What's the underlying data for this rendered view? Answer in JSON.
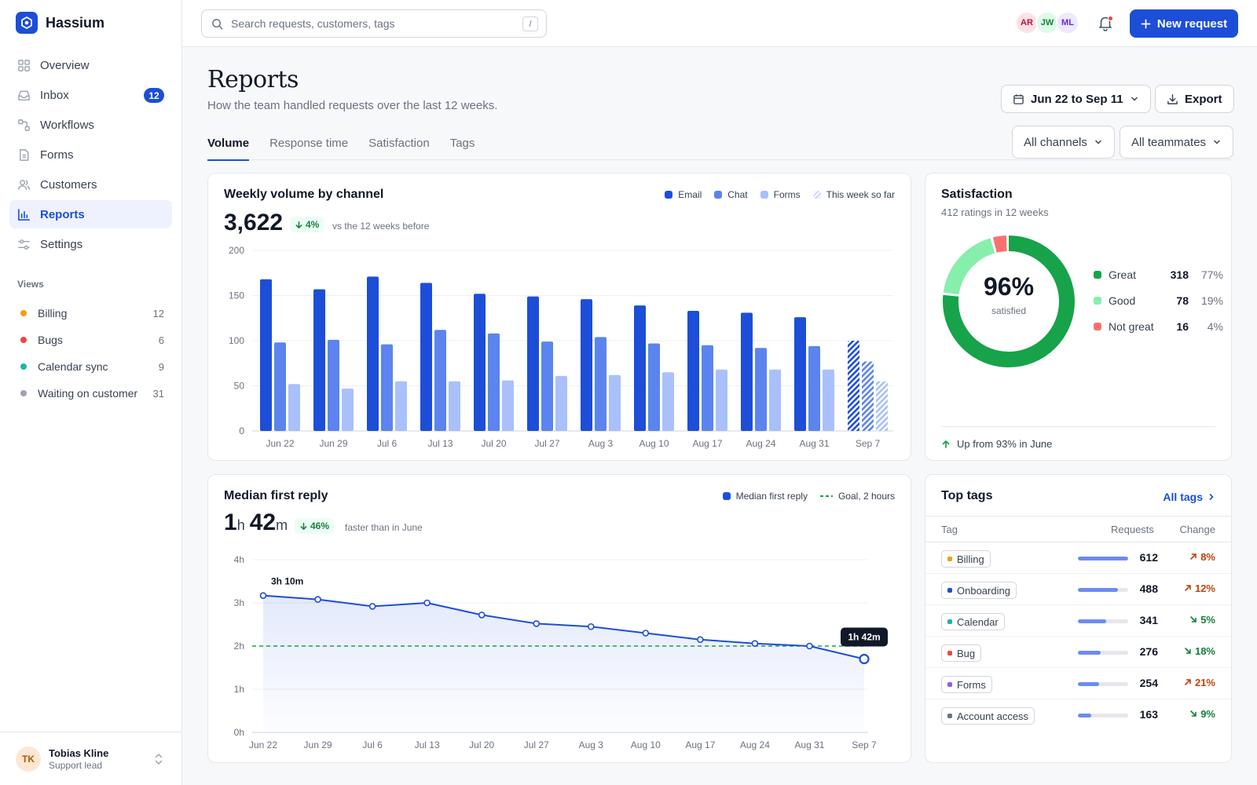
{
  "app": {
    "name": "Hassium"
  },
  "sidebar": {
    "nav": [
      {
        "label": "Overview",
        "icon": "grid-icon"
      },
      {
        "label": "Inbox",
        "icon": "inbox-icon",
        "badge": "12"
      },
      {
        "label": "Workflows",
        "icon": "workflow-icon"
      },
      {
        "label": "Forms",
        "icon": "document-icon"
      },
      {
        "label": "Customers",
        "icon": "users-icon"
      },
      {
        "label": "Reports",
        "icon": "bar-chart-icon",
        "active": true
      },
      {
        "label": "Settings",
        "icon": "sliders-icon"
      }
    ],
    "views_title": "Views",
    "views": [
      {
        "label": "Billing",
        "count": "12",
        "color": "#f59e0b"
      },
      {
        "label": "Bugs",
        "count": "6",
        "color": "#ef4444"
      },
      {
        "label": "Calendar sync",
        "count": "9",
        "color": "#14b8a6"
      },
      {
        "label": "Waiting on customer",
        "count": "31",
        "color": "#9ca3af"
      }
    ],
    "user": {
      "initials": "TK",
      "name": "Tobias Kline",
      "role": "Support lead"
    }
  },
  "topbar": {
    "search_placeholder": "Search requests, customers, tags",
    "search_shortcut": "/",
    "avatars": [
      {
        "initials": "AR",
        "bg": "#fde2e4",
        "fg": "#be123c"
      },
      {
        "initials": "JW",
        "bg": "#dcfce7",
        "fg": "#15803d"
      },
      {
        "initials": "ML",
        "bg": "#ede9fe",
        "fg": "#6d28d9"
      }
    ],
    "new_button": "New request"
  },
  "header": {
    "title": "Reports",
    "subtitle": "How the team handled requests over the last 12 weeks.",
    "date_range": "Jun 22 to Sep 11",
    "export": "Export",
    "channel_filter": "All channels",
    "teammate_filter": "All teammates",
    "tabs": [
      "Volume",
      "Response time",
      "Satisfaction",
      "Tags"
    ]
  },
  "volume_card": {
    "title": "Weekly volume by channel",
    "total": "3,622",
    "delta": "4%",
    "delta_note": "vs the 12 weeks before",
    "legend": [
      "Email",
      "Chat",
      "Forms",
      "This week so far"
    ]
  },
  "reply_card": {
    "title": "Median first reply",
    "value_h": "1",
    "unit_h": "h",
    "value_m": "42",
    "unit_m": "m",
    "delta": "46%",
    "delta_note": "faster than in June",
    "legend": [
      "Median first reply",
      "Goal, 2 hours"
    ],
    "first_label": "3h 10m",
    "last_label": "1h 42m"
  },
  "satisfaction": {
    "title": "Satisfaction",
    "subtitle": "412 ratings in 12 weeks",
    "center_value": "96%",
    "center_label": "satisfied",
    "rows": [
      {
        "label": "Great",
        "count": "318",
        "pct": "77%",
        "color": "#16a34a",
        "value": 318
      },
      {
        "label": "Good",
        "count": "78",
        "pct": "19%",
        "color": "#86efac",
        "value": 78
      },
      {
        "label": "Not great",
        "count": "16",
        "pct": "4%",
        "color": "#f87171",
        "value": 16
      }
    ],
    "footer": "Up from 93% in June"
  },
  "top_tags": {
    "title": "Top tags",
    "link": "All tags",
    "headers": {
      "tag": "Tag",
      "requests": "Requests",
      "change": "Change"
    },
    "rows": [
      {
        "tag": "Billing",
        "color": "#f59e0b",
        "requests": "612",
        "share": 1.0,
        "change": "8%",
        "direction": "up"
      },
      {
        "tag": "Onboarding",
        "color": "#1d4ed8",
        "requests": "488",
        "share": 0.8,
        "change": "12%",
        "direction": "up"
      },
      {
        "tag": "Calendar",
        "color": "#14b8a6",
        "requests": "341",
        "share": 0.56,
        "change": "5%",
        "direction": "down"
      },
      {
        "tag": "Bug",
        "color": "#ef4444",
        "requests": "276",
        "share": 0.45,
        "change": "18%",
        "direction": "down"
      },
      {
        "tag": "Forms",
        "color": "#8b5cf6",
        "requests": "254",
        "share": 0.42,
        "change": "21%",
        "direction": "up"
      },
      {
        "tag": "Account access",
        "color": "#64748b",
        "requests": "163",
        "share": 0.27,
        "change": "9%",
        "direction": "down"
      }
    ]
  },
  "chart_data": [
    {
      "type": "bar",
      "title": "Weekly volume by channel",
      "categories": [
        "Jun 22",
        "Jun 29",
        "Jul 6",
        "Jul 13",
        "Jul 20",
        "Jul 27",
        "Aug 3",
        "Aug 10",
        "Aug 17",
        "Aug 24",
        "Aug 31",
        "Sep 7"
      ],
      "series": [
        {
          "name": "Email",
          "values": [
            168,
            157,
            171,
            164,
            152,
            149,
            146,
            139,
            133,
            131,
            126,
            100
          ],
          "color": "#1d4ed8"
        },
        {
          "name": "Chat",
          "values": [
            98,
            101,
            96,
            112,
            108,
            99,
            104,
            97,
            95,
            92,
            94,
            77
          ],
          "color": "#5b84ee"
        },
        {
          "name": "Forms",
          "values": [
            52,
            47,
            55,
            55,
            56,
            61,
            62,
            65,
            68,
            68,
            68,
            55
          ],
          "color": "#a9c0fa"
        }
      ],
      "partial_last_category": true,
      "ylim": [
        0,
        200
      ],
      "yticks": [
        0,
        50,
        100,
        150,
        200
      ],
      "grid": true,
      "legend": "top-right"
    },
    {
      "type": "line",
      "title": "Median first reply",
      "x": [
        "Jun 22",
        "Jun 29",
        "Jul 6",
        "Jul 13",
        "Jul 20",
        "Jul 27",
        "Aug 3",
        "Aug 10",
        "Aug 17",
        "Aug 24",
        "Aug 31",
        "Sep 7"
      ],
      "series": [
        {
          "name": "Median first reply",
          "values": [
            3.17,
            3.08,
            2.92,
            3.0,
            2.72,
            2.52,
            2.45,
            2.3,
            2.15,
            2.06,
            2.0,
            1.7
          ],
          "color": "#1d4ed8"
        }
      ],
      "goal": {
        "name": "Goal, 2 hours",
        "value": 2,
        "color": "#16a34a"
      },
      "ylim": [
        0,
        4
      ],
      "yticks": [
        "0h",
        "1h",
        "2h",
        "3h",
        "4h"
      ],
      "grid": true,
      "legend": "top-right"
    },
    {
      "type": "pie",
      "title": "Satisfaction",
      "labels": [
        "Great",
        "Good",
        "Not great"
      ],
      "values": [
        318,
        78,
        16
      ]
    }
  ]
}
